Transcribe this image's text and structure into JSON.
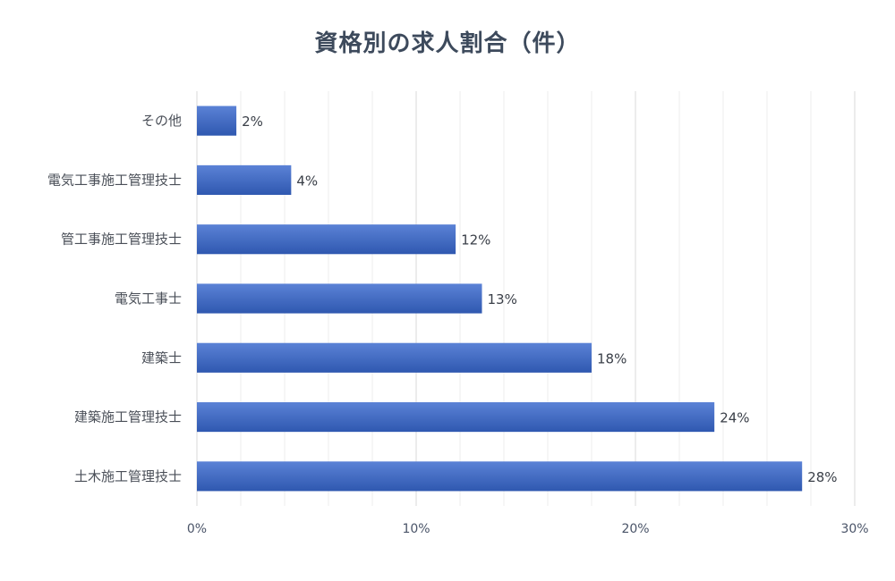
{
  "chart_data": {
    "type": "bar",
    "orientation": "horizontal",
    "title": "資格別の求人割合（件）",
    "categories": [
      "その他",
      "電気工事施工管理技士",
      "管工事施工管理技士",
      "電気工事士",
      "建築士",
      "建築施工管理技士",
      "土木施工管理技士"
    ],
    "values": [
      1.8,
      4.3,
      11.8,
      13.0,
      18.0,
      23.6,
      27.6
    ],
    "value_labels": [
      "2%",
      "4%",
      "12%",
      "13%",
      "18%",
      "24%",
      "28%"
    ],
    "x_ticks": [
      "0%",
      "10%",
      "20%",
      "30%"
    ],
    "xlim": [
      0,
      30
    ],
    "xlabel": "",
    "ylabel": "",
    "grid": true,
    "bar_color": "#3f69c2"
  }
}
